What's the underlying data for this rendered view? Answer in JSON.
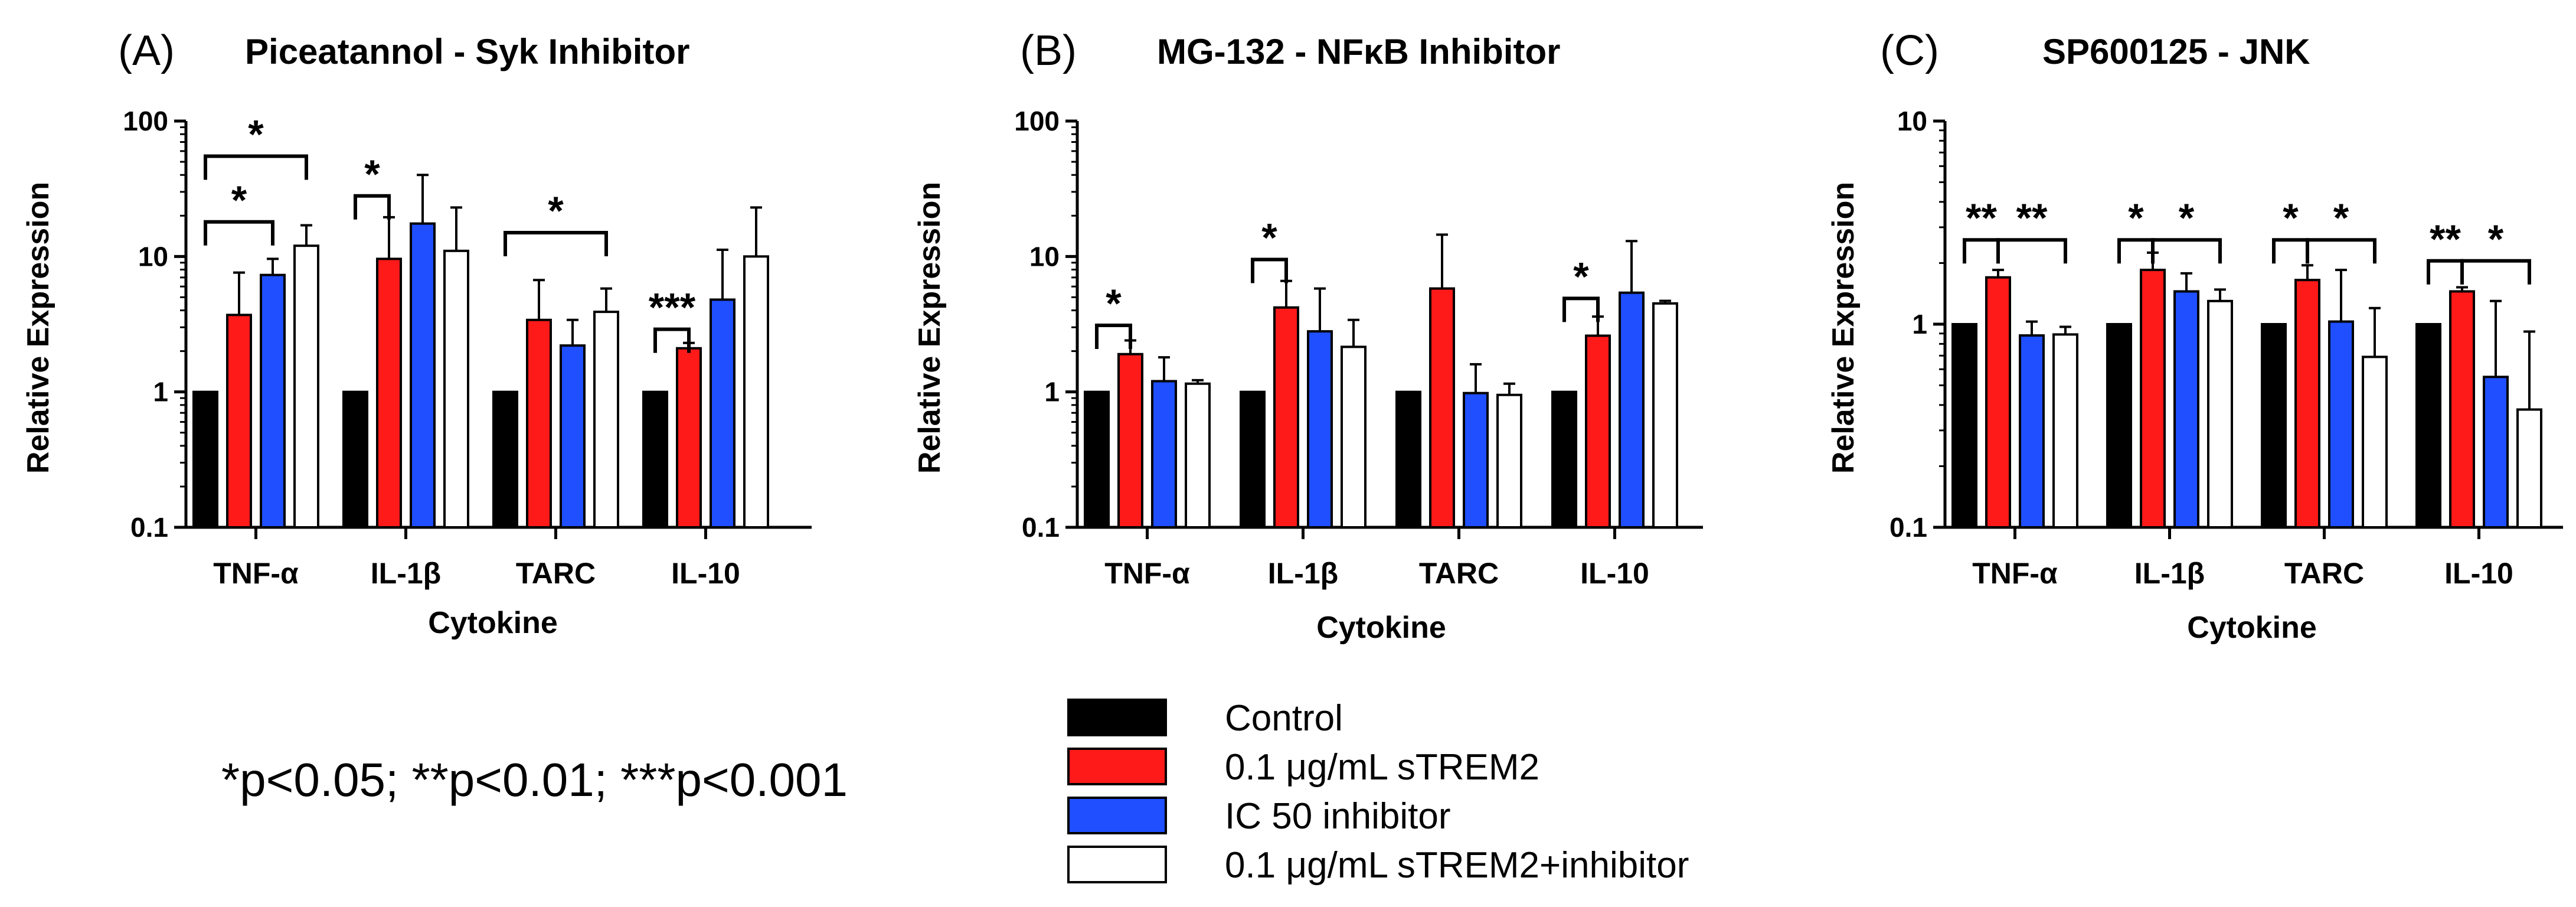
{
  "legend": [
    {
      "label": "Control",
      "color": "#000000"
    },
    {
      "label": "0.1 μg/mL sTREM2",
      "color": "#ff1a1a"
    },
    {
      "label": "IC 50 inhibitor",
      "color": "#1f4fff"
    },
    {
      "label": "0.1 μg/mL sTREM2+inhibitor",
      "color": "#ffffff"
    }
  ],
  "footnote": "*p<0.05; **p<0.01; ***p<0.001",
  "chart_data": [
    {
      "type": "bar",
      "panel": "(A)",
      "title": "Piceatannol - Syk Inhibitor",
      "xlabel": "Cytokine",
      "ylabel": "Relative Expression",
      "yscale": "log",
      "ylim": [
        0.1,
        100
      ],
      "yticks": [
        "0.1",
        "1",
        "10",
        "100"
      ],
      "categories": [
        "TNF-α",
        "IL-1β",
        "TARC",
        "IL-10"
      ],
      "series": [
        {
          "name": "Control",
          "values": [
            1,
            1,
            1,
            1
          ],
          "err": [
            0,
            0,
            0,
            0
          ]
        },
        {
          "name": "0.1 μg/mL sTREM2",
          "values": [
            3.7,
            9.6,
            3.4,
            2.1
          ],
          "err": [
            7.6,
            19.5,
            6.7,
            2.3
          ]
        },
        {
          "name": "IC 50 inhibitor",
          "values": [
            7.3,
            17.5,
            2.2,
            4.8
          ],
          "err": [
            9.6,
            40,
            3.4,
            11.2
          ]
        },
        {
          "name": "0.1 μg/mL sTREM2+inhibitor",
          "values": [
            12,
            11,
            3.9,
            10
          ],
          "err": [
            17,
            23,
            5.8,
            23
          ]
        }
      ],
      "significance": [
        {
          "cat": 0,
          "from": 0,
          "to": 3,
          "label": "*",
          "y": 55
        },
        {
          "cat": 0,
          "from": 0,
          "to": 2,
          "label": "*",
          "y": 18
        },
        {
          "cat": 1,
          "from": 0,
          "to": 1,
          "label": "*",
          "y": 28
        },
        {
          "cat": 2,
          "from": 0,
          "to": 3,
          "label": "*",
          "y": 15
        },
        {
          "cat": 3,
          "from": 0,
          "to": 1,
          "label": "***",
          "y": 2.9
        }
      ]
    },
    {
      "type": "bar",
      "panel": "(B)",
      "title": "MG-132 - NFκB Inhibitor",
      "xlabel": "Cytokine",
      "ylabel": "Relative Expression",
      "yscale": "log",
      "ylim": [
        0.1,
        100
      ],
      "yticks": [
        "0.1",
        "1",
        "10",
        "100"
      ],
      "categories": [
        "TNF-α",
        "IL-1β",
        "TARC",
        "IL-10"
      ],
      "series": [
        {
          "name": "Control",
          "values": [
            1,
            1,
            1,
            1
          ],
          "err": [
            0,
            0,
            0,
            0
          ]
        },
        {
          "name": "0.1 μg/mL sTREM2",
          "values": [
            1.9,
            4.2,
            5.8,
            2.6
          ],
          "err": [
            2.4,
            6.6,
            14.5,
            3.6
          ]
        },
        {
          "name": "IC 50 inhibitor",
          "values": [
            1.2,
            2.8,
            0.98,
            5.4
          ],
          "err": [
            1.8,
            5.8,
            1.6,
            13
          ]
        },
        {
          "name": "0.1 μg/mL sTREM2+inhibitor",
          "values": [
            1.15,
            2.15,
            0.95,
            4.5
          ],
          "err": [
            1.22,
            3.4,
            1.15,
            4.7
          ]
        }
      ],
      "significance": [
        {
          "cat": 0,
          "from": 0,
          "to": 1,
          "label": "*",
          "y": 3.1
        },
        {
          "cat": 1,
          "from": 0,
          "to": 1,
          "label": "*",
          "y": 9.5
        },
        {
          "cat": 3,
          "from": 0,
          "to": 1,
          "label": "*",
          "y": 4.9
        }
      ]
    },
    {
      "type": "bar",
      "panel": "(C)",
      "title": "SP600125 - JNK",
      "xlabel": "Cytokine",
      "ylabel": "Relative Expression",
      "yscale": "log",
      "ylim": [
        0.1,
        10
      ],
      "yticks": [
        "0.1",
        "1",
        "10"
      ],
      "categories": [
        "TNF-α",
        "IL-1β",
        "TARC",
        "IL-10"
      ],
      "series": [
        {
          "name": "Control",
          "values": [
            1,
            1,
            1,
            1
          ],
          "err": [
            0,
            0,
            0,
            0
          ]
        },
        {
          "name": "0.1 μg/mL sTREM2",
          "values": [
            1.7,
            1.85,
            1.65,
            1.45
          ],
          "err": [
            1.85,
            2.25,
            1.95,
            1.52
          ]
        },
        {
          "name": "IC 50 inhibitor",
          "values": [
            0.88,
            1.45,
            1.03,
            0.55
          ],
          "err": [
            1.03,
            1.78,
            1.85,
            1.3
          ]
        },
        {
          "name": "0.1 μg/mL sTREM2+inhibitor",
          "values": [
            0.89,
            1.3,
            0.69,
            0.38
          ],
          "err": [
            0.97,
            1.48,
            1.2,
            0.92
          ]
        }
      ],
      "significance": [
        {
          "cat": 0,
          "from": 0,
          "to": 1,
          "label": "**",
          "y": 2.6
        },
        {
          "cat": 0,
          "from": 1,
          "to": 3,
          "label": "**",
          "y": 2.6
        },
        {
          "cat": 1,
          "from": 0,
          "to": 1,
          "label": "*",
          "y": 2.6
        },
        {
          "cat": 1,
          "from": 1,
          "to": 3,
          "label": "*",
          "y": 2.6
        },
        {
          "cat": 2,
          "from": 0,
          "to": 1,
          "label": "*",
          "y": 2.6
        },
        {
          "cat": 2,
          "from": 1,
          "to": 3,
          "label": "*",
          "y": 2.6
        },
        {
          "cat": 3,
          "from": 0,
          "to": 1,
          "label": "**",
          "y": 2.05
        },
        {
          "cat": 3,
          "from": 1,
          "to": 3,
          "label": "*",
          "y": 2.05
        }
      ]
    }
  ]
}
